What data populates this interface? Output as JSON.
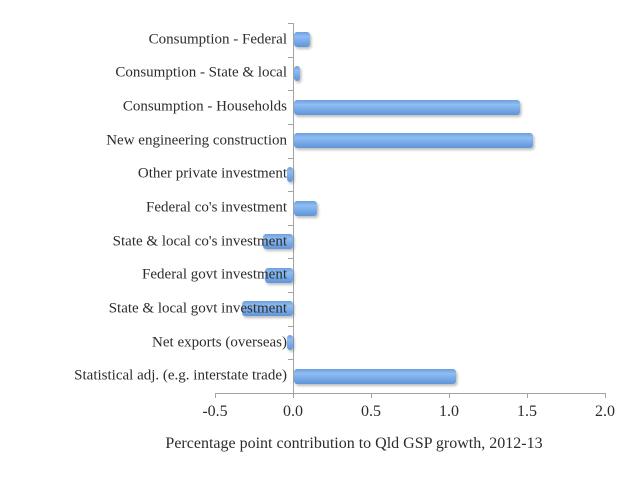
{
  "chart_data": {
    "type": "bar",
    "orientation": "horizontal",
    "title": "",
    "xlabel": "Percentage point contribution to Qld GSP growth, 2012-13",
    "ylabel": "",
    "xlim": [
      -0.5,
      2.0
    ],
    "xticks": [
      "-0.5",
      "0.0",
      "0.5",
      "1.0",
      "1.5",
      "2.0"
    ],
    "grid": "off",
    "legend": "none",
    "categories": [
      "Consumption - Federal",
      "Consumption - State & local",
      "Consumption - Households",
      "New engineering construction",
      "Other private investment",
      "Federal co's investment",
      "State & local co's investment",
      "Federal govt investment",
      "State & local govt investment",
      "Net exports (overseas)",
      "Statistical adj. (e.g. interstate trade)"
    ],
    "values": [
      0.1,
      0.04,
      1.45,
      1.53,
      -0.04,
      0.15,
      -0.19,
      -0.18,
      -0.33,
      -0.04,
      1.04
    ],
    "colors": {
      "bar_fill": "#79abe9",
      "bar_fill_highlight": "#8ebdf3",
      "bar_fill_dark": "#6095d6",
      "axis_line": "#a3a3a3",
      "text": "#2e2c2b",
      "background": "#ffffff"
    }
  }
}
